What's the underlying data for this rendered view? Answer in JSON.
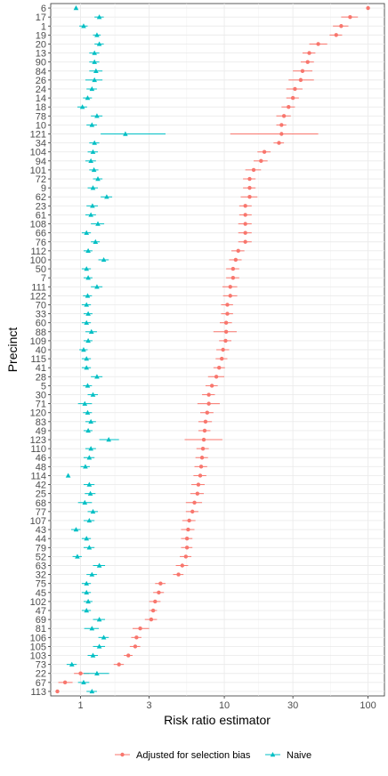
{
  "chart_data": {
    "type": "scatter",
    "xlabel": "Risk ratio estimator",
    "ylabel": "Precinct",
    "x_scale": "log",
    "xlim": [
      0.62,
      130
    ],
    "x_ticks": [
      1,
      3,
      10,
      30,
      100
    ],
    "x_tick_labels": [
      "1",
      "3",
      "10",
      "30",
      "100"
    ],
    "grid": true,
    "legend_position": "bottom",
    "categories": [
      "6",
      "17",
      "1",
      "19",
      "20",
      "13",
      "90",
      "84",
      "26",
      "24",
      "14",
      "18",
      "78",
      "10",
      "121",
      "34",
      "104",
      "94",
      "101",
      "72",
      "9",
      "62",
      "23",
      "61",
      "108",
      "66",
      "76",
      "112",
      "100",
      "50",
      "7",
      "111",
      "122",
      "70",
      "33",
      "60",
      "88",
      "109",
      "40",
      "115",
      "41",
      "28",
      "5",
      "30",
      "71",
      "120",
      "83",
      "49",
      "123",
      "110",
      "46",
      "48",
      "114",
      "42",
      "25",
      "68",
      "77",
      "107",
      "43",
      "44",
      "79",
      "52",
      "63",
      "32",
      "75",
      "45",
      "102",
      "47",
      "69",
      "81",
      "106",
      "105",
      "103",
      "73",
      "22",
      "67",
      "113"
    ],
    "series": [
      {
        "name": "Adjusted for selection bias",
        "color": "#F8766D",
        "values": [
          100,
          75,
          65,
          60,
          45,
          39,
          38,
          35,
          34,
          31,
          30,
          28,
          26,
          25,
          25,
          24,
          19,
          18,
          16,
          15,
          15,
          15,
          14,
          14,
          14,
          14,
          14,
          12.5,
          12,
          11.5,
          11.5,
          11,
          11,
          10.5,
          10.5,
          10.3,
          10.3,
          10.2,
          9.8,
          9.6,
          9.2,
          8.8,
          8.2,
          7.8,
          7.8,
          7.6,
          7.4,
          7.3,
          7.2,
          7.1,
          7.0,
          6.9,
          6.8,
          6.6,
          6.5,
          6.2,
          6.0,
          5.7,
          5.6,
          5.5,
          5.5,
          5.4,
          5.1,
          4.8,
          3.6,
          3.5,
          3.3,
          3.2,
          3.1,
          2.6,
          2.45,
          2.4,
          2.15,
          1.85,
          1.0,
          0.78,
          0.69
        ],
        "ci_low": [
          null,
          65,
          57,
          54,
          39,
          35,
          34,
          30,
          28,
          27,
          27,
          25,
          23,
          23,
          11,
          22,
          17,
          16,
          14,
          13.5,
          13.5,
          13,
          12.7,
          12.7,
          12.5,
          12.5,
          12.5,
          11.2,
          10.8,
          10.3,
          10.3,
          9.7,
          9.8,
          9.5,
          9.5,
          9.3,
          8.4,
          9.2,
          8.8,
          8.7,
          8.4,
          7.7,
          7.4,
          7.0,
          6.5,
          6.8,
          6.6,
          6.6,
          5.3,
          6.4,
          6.3,
          6.2,
          6.1,
          5.9,
          5.8,
          5.4,
          5.4,
          5.1,
          5.0,
          5.0,
          5.0,
          4.9,
          4.6,
          4.4,
          3.3,
          3.2,
          3.0,
          3.0,
          2.8,
          2.3,
          2.25,
          2.2,
          2.0,
          1.7,
          0.9,
          0.7,
          null
        ],
        "ci_high": [
          null,
          85,
          73,
          66,
          52,
          43,
          42,
          41,
          42,
          35,
          33,
          31,
          29,
          27,
          45,
          26,
          21,
          20,
          18,
          16.5,
          16.5,
          17,
          15.5,
          15.5,
          15.5,
          15.5,
          15.5,
          13.8,
          13.2,
          12.7,
          12.7,
          12.3,
          12.3,
          11.5,
          11.5,
          11.3,
          12.2,
          11.2,
          10.8,
          10.5,
          10.1,
          10.0,
          9.0,
          8.6,
          9.3,
          8.4,
          8.2,
          8.0,
          9.7,
          7.8,
          7.7,
          7.6,
          7.5,
          7.3,
          7.2,
          7.0,
          6.6,
          6.3,
          6.2,
          6.0,
          6.0,
          5.9,
          5.6,
          5.2,
          3.9,
          3.8,
          3.6,
          3.4,
          3.4,
          3.0,
          2.65,
          2.6,
          2.3,
          2.0,
          1.15,
          0.88,
          null
        ]
      },
      {
        "name": "Naive",
        "color": "#00BFC4",
        "values": [
          0.93,
          1.35,
          1.05,
          1.3,
          1.35,
          1.25,
          1.25,
          1.28,
          1.25,
          1.2,
          1.12,
          1.03,
          1.3,
          1.2,
          2.05,
          1.25,
          1.22,
          1.18,
          1.24,
          1.32,
          1.22,
          1.52,
          1.21,
          1.18,
          1.32,
          1.1,
          1.27,
          1.13,
          1.45,
          1.1,
          1.13,
          1.3,
          1.12,
          1.1,
          1.13,
          1.1,
          1.19,
          1.13,
          1.05,
          1.1,
          1.1,
          1.3,
          1.12,
          1.22,
          1.07,
          1.12,
          1.18,
          1.13,
          1.57,
          1.18,
          1.15,
          1.08,
          0.82,
          1.15,
          1.17,
          1.07,
          1.22,
          1.15,
          0.93,
          1.1,
          1.15,
          0.95,
          1.35,
          1.2,
          1.1,
          1.1,
          1.13,
          1.1,
          1.35,
          1.2,
          1.45,
          1.35,
          1.22,
          0.87,
          1.3,
          1.05,
          1.2
        ],
        "ci_low": [
          null,
          1.25,
          0.98,
          1.22,
          1.25,
          1.15,
          1.15,
          1.15,
          1.08,
          1.1,
          1.04,
          0.95,
          1.18,
          1.1,
          1.38,
          1.15,
          1.12,
          1.08,
          1.15,
          1.22,
          1.12,
          1.38,
          1.1,
          1.08,
          1.18,
          1.02,
          1.18,
          1.05,
          1.33,
          1.02,
          1.05,
          1.18,
          1.04,
          1.02,
          1.05,
          1.02,
          1.08,
          1.05,
          0.98,
          1.02,
          1.02,
          1.18,
          1.04,
          1.12,
          0.96,
          1.04,
          1.08,
          1.05,
          1.35,
          1.08,
          1.05,
          1.0,
          null,
          1.05,
          1.07,
          0.96,
          1.12,
          1.05,
          0.86,
          1.02,
          1.05,
          0.88,
          1.22,
          1.1,
          1.02,
          1.02,
          1.05,
          1.02,
          1.22,
          1.06,
          1.33,
          1.22,
          1.12,
          0.8,
          1.05,
          0.96,
          1.1
        ],
        "ci_high": [
          null,
          1.45,
          1.12,
          1.38,
          1.45,
          1.35,
          1.35,
          1.42,
          1.42,
          1.3,
          1.2,
          1.11,
          1.42,
          1.3,
          3.9,
          1.35,
          1.32,
          1.28,
          1.33,
          1.42,
          1.32,
          1.66,
          1.32,
          1.28,
          1.46,
          1.18,
          1.36,
          1.21,
          1.57,
          1.18,
          1.21,
          1.42,
          1.2,
          1.18,
          1.21,
          1.18,
          1.3,
          1.21,
          1.12,
          1.18,
          1.18,
          1.42,
          1.2,
          1.32,
          1.2,
          1.2,
          1.28,
          1.21,
          1.85,
          1.28,
          1.25,
          1.16,
          null,
          1.25,
          1.27,
          1.2,
          1.32,
          1.25,
          1.0,
          1.18,
          1.25,
          1.02,
          1.48,
          1.3,
          1.18,
          1.18,
          1.21,
          1.18,
          1.48,
          1.34,
          1.57,
          1.48,
          1.32,
          0.94,
          1.58,
          1.15,
          1.3
        ]
      }
    ]
  }
}
